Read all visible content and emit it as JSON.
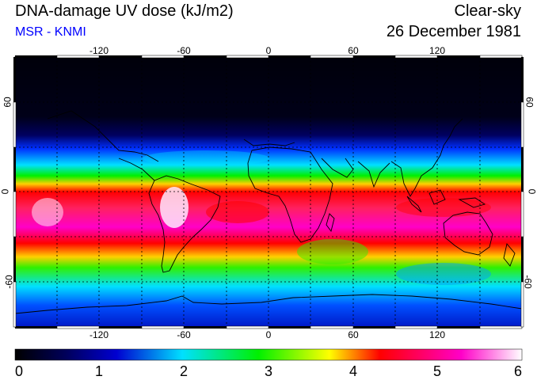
{
  "header": {
    "title": "DNA-damage UV dose (kJ/m2)",
    "source": "MSR - KNMI",
    "sky_condition": "Clear-sky",
    "date": "26 December 1981"
  },
  "colors": {
    "source_text": "#0000ff",
    "scale": [
      "#000000",
      "#0000c8",
      "#00e0ff",
      "#00f000",
      "#ffff00",
      "#ff0000",
      "#ff00c8",
      "#ffffff"
    ]
  },
  "map": {
    "projection": "equirectangular",
    "lon_range": [
      -180,
      180
    ],
    "lat_range": [
      -90,
      90
    ],
    "grid_spacing_deg": 30,
    "lon_ticks": [
      "-120",
      "-60",
      "0",
      "60",
      "120"
    ],
    "lat_ticks_left": [
      "60",
      "0",
      "-60"
    ],
    "lat_ticks_right": [
      "60",
      "0",
      "-60"
    ]
  },
  "colorbar": {
    "min": 0,
    "max": 6,
    "labels": [
      "0",
      "1",
      "2",
      "3",
      "4",
      "5",
      "6"
    ]
  }
}
